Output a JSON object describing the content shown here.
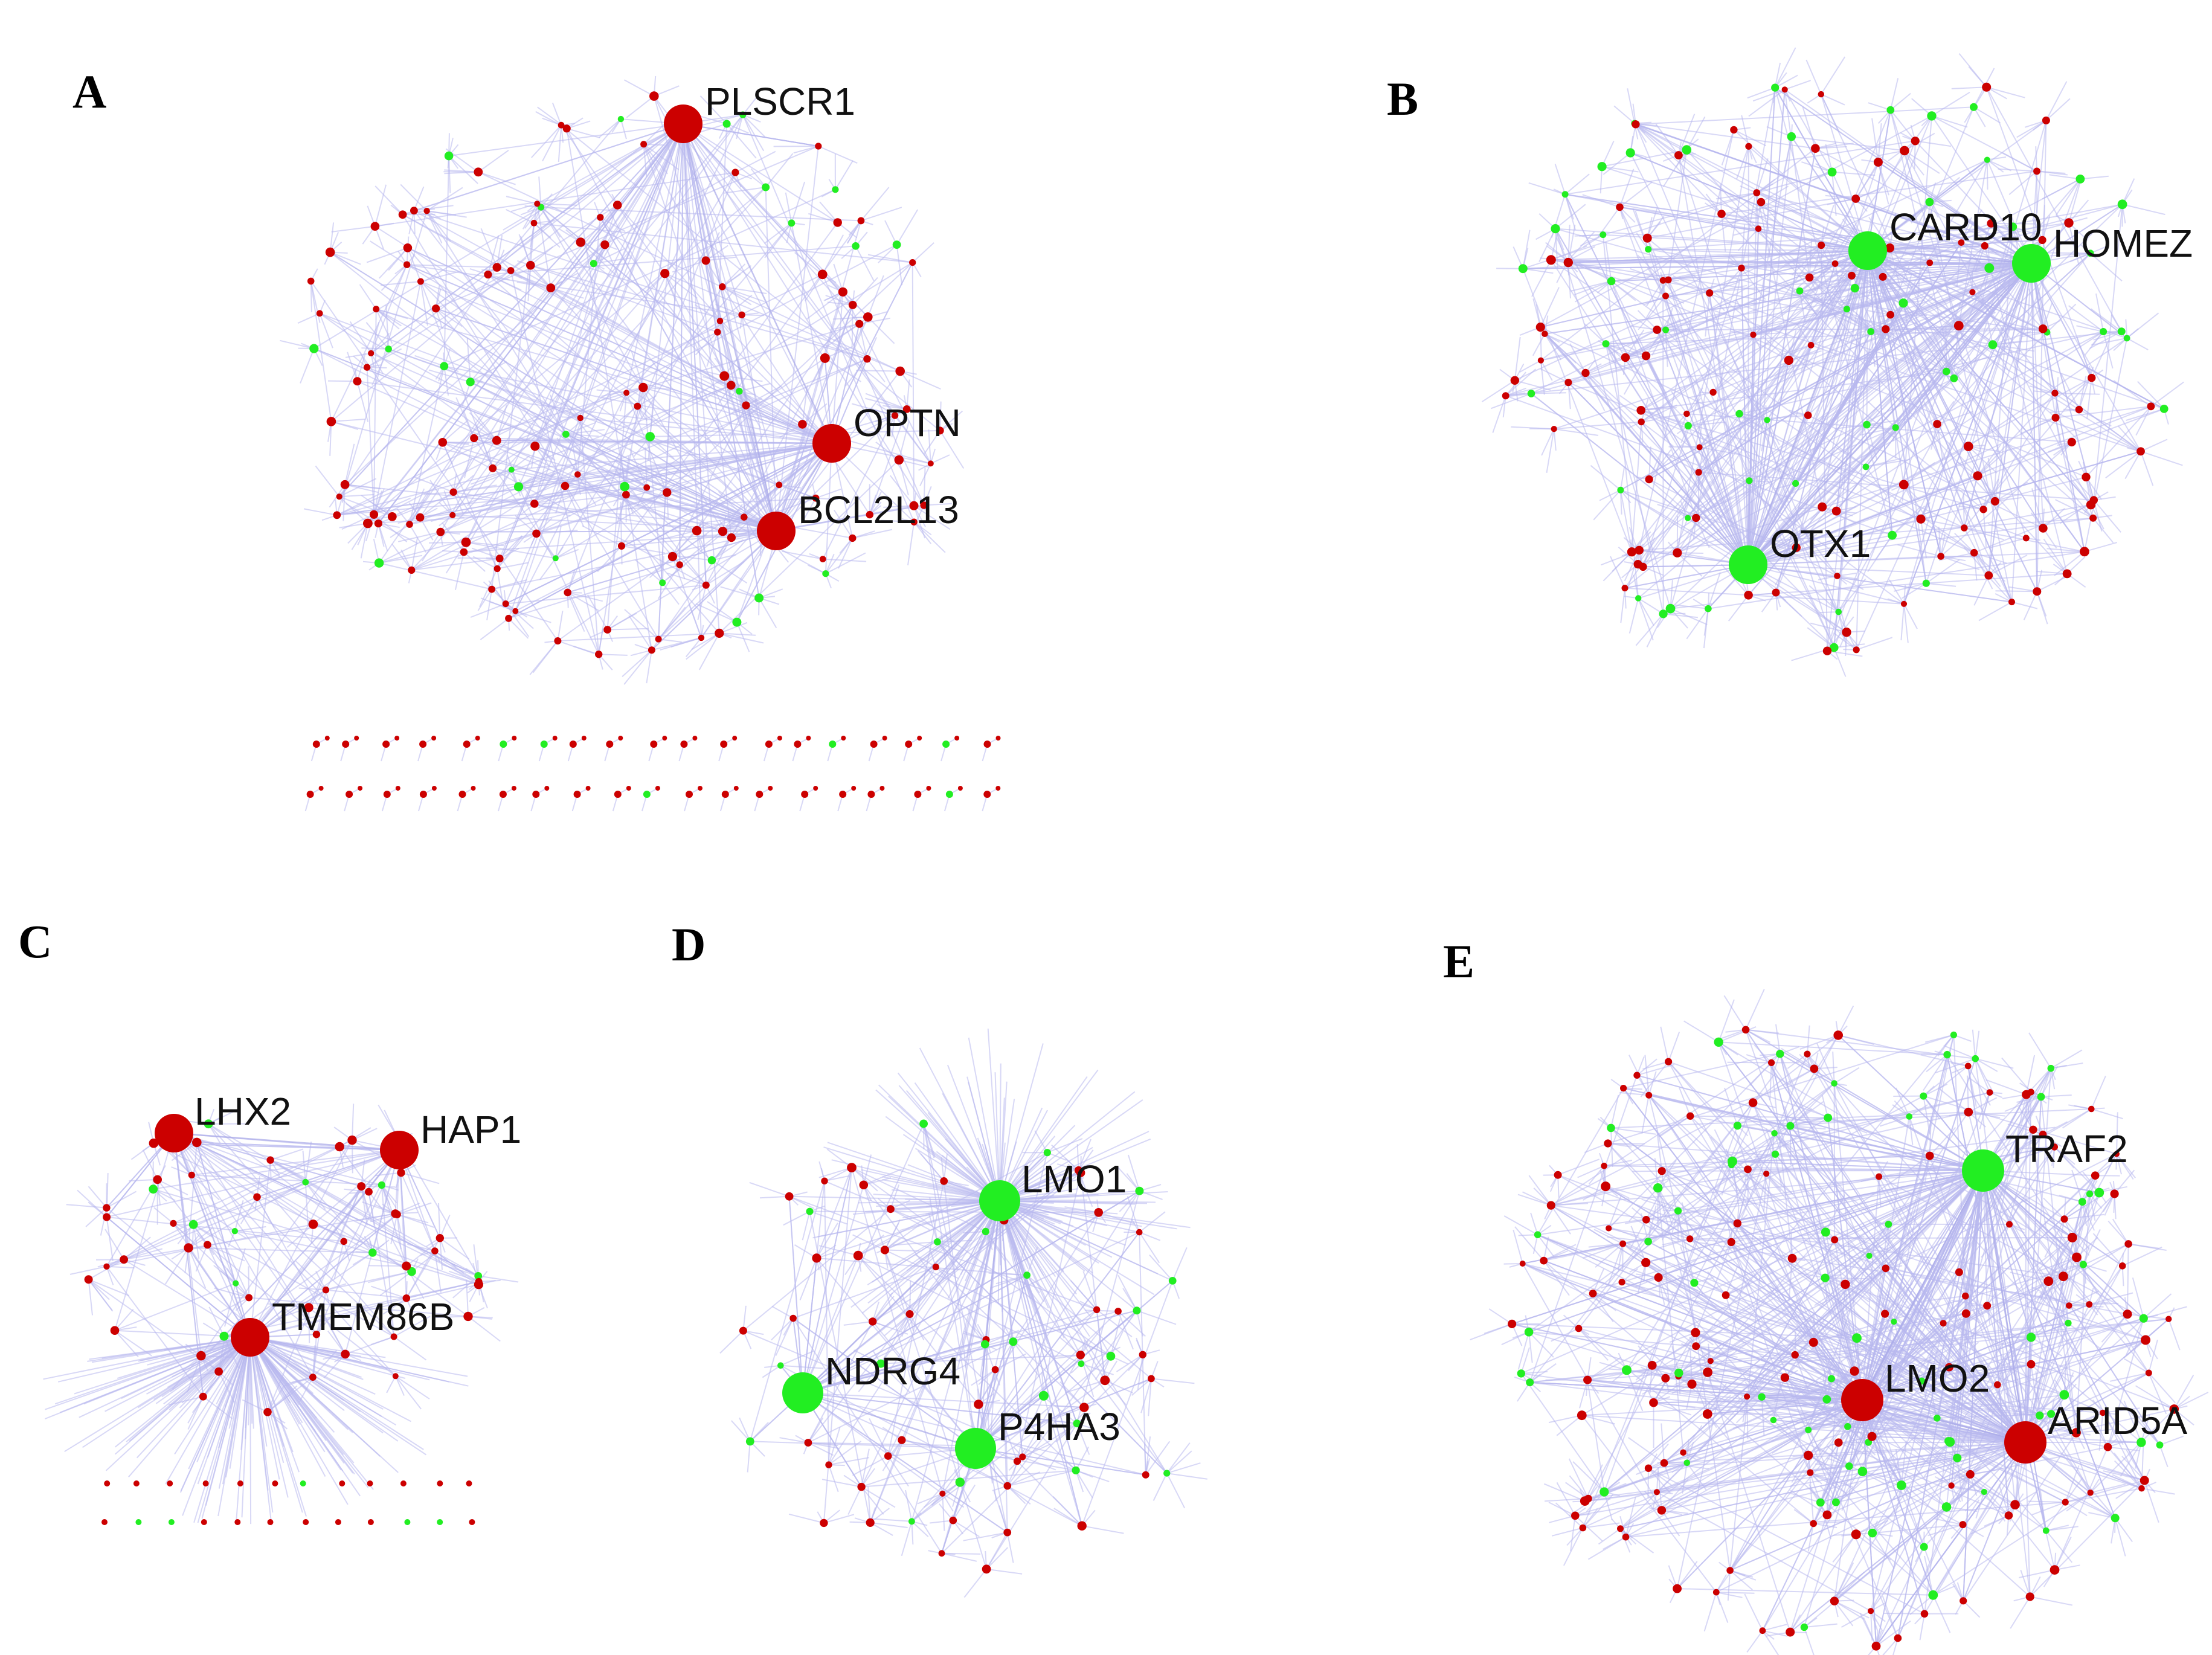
{
  "figure": {
    "colors": {
      "red": "#cc0000",
      "green": "#22ee22",
      "edge": "#b8b8ee",
      "text": "#111111"
    },
    "panels": [
      {
        "id": "A",
        "letter": "A",
        "hubs": [
          {
            "label": "PLSCR1",
            "color": "red"
          },
          {
            "label": "OPTN",
            "color": "red"
          },
          {
            "label": "BCL2L13",
            "color": "red"
          }
        ]
      },
      {
        "id": "B",
        "letter": "B",
        "hubs": [
          {
            "label": "CARD10",
            "color": "green"
          },
          {
            "label": "HOMEZ",
            "color": "green"
          },
          {
            "label": "OTX1",
            "color": "green"
          }
        ]
      },
      {
        "id": "C",
        "letter": "C",
        "hubs": [
          {
            "label": "LHX2",
            "color": "red"
          },
          {
            "label": "HAP1",
            "color": "red"
          },
          {
            "label": "TMEM86B",
            "color": "red"
          }
        ]
      },
      {
        "id": "D",
        "letter": "D",
        "hubs": [
          {
            "label": "LMO1",
            "color": "green"
          },
          {
            "label": "NDRG4",
            "color": "green"
          },
          {
            "label": "P4HA3",
            "color": "green"
          }
        ]
      },
      {
        "id": "E",
        "letter": "E",
        "hubs": [
          {
            "label": "TRAF2",
            "color": "green"
          },
          {
            "label": "LMO2",
            "color": "red"
          },
          {
            "label": "ARID5A",
            "color": "red"
          }
        ]
      }
    ]
  }
}
